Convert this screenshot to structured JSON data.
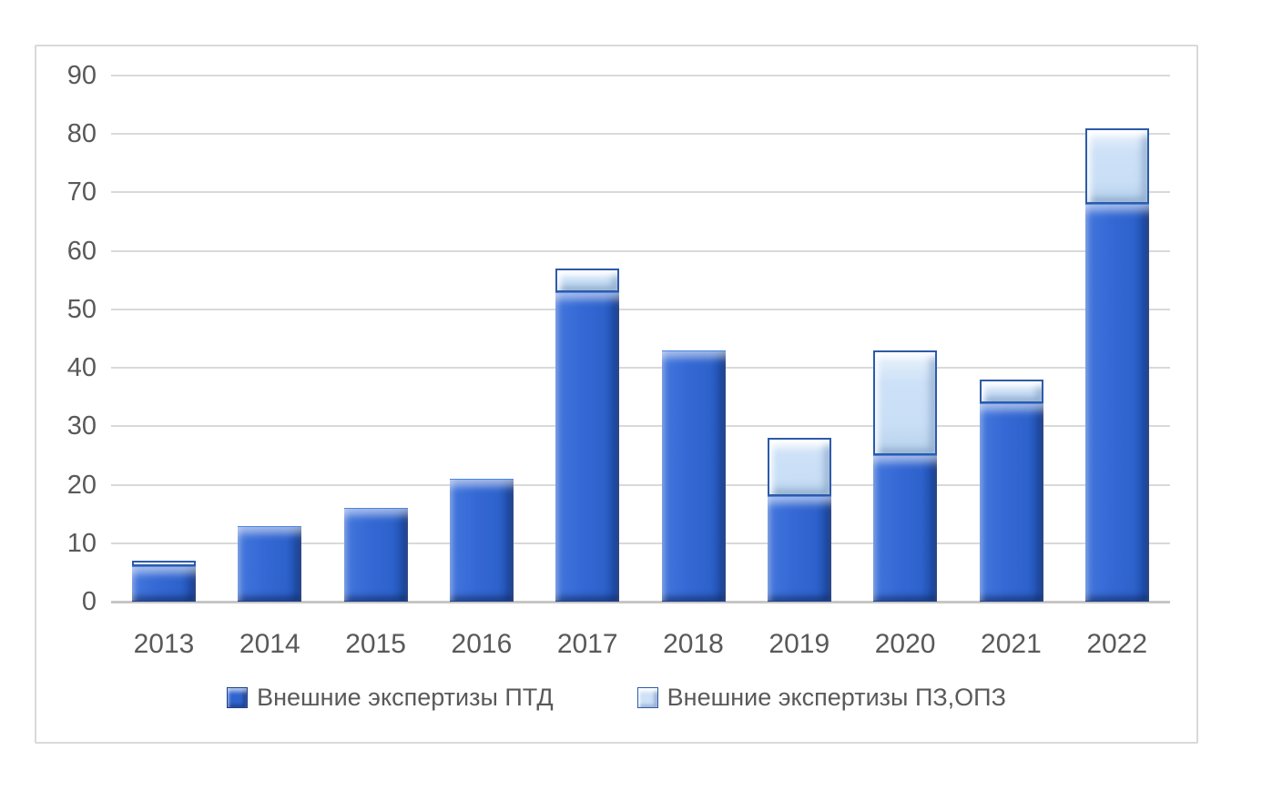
{
  "chart_data": {
    "type": "bar",
    "stacked": true,
    "title": "",
    "xlabel": "",
    "ylabel": "",
    "categories": [
      "2013",
      "2014",
      "2015",
      "2016",
      "2017",
      "2018",
      "2019",
      "2020",
      "2021",
      "2022"
    ],
    "series": [
      {
        "name": "Внешние экспертизы ПТД",
        "color": "#2F63CE",
        "values": [
          6,
          13,
          16,
          21,
          53,
          43,
          18,
          25,
          34,
          68
        ]
      },
      {
        "name": "Внешние экспертизы ПЗ,ОПЗ",
        "color": "#CDE1F7",
        "values": [
          1,
          0,
          0,
          0,
          4,
          0,
          10,
          18,
          4,
          13
        ]
      }
    ],
    "stack_totals": [
      7,
      13,
      16,
      21,
      57,
      43,
      28,
      43,
      38,
      81
    ],
    "ylim": [
      0,
      90
    ],
    "ytick_step": 10,
    "yticks": [
      "0",
      "10",
      "20",
      "30",
      "40",
      "50",
      "60",
      "70",
      "80",
      "90"
    ],
    "grid": true,
    "legend_position": "bottom",
    "colors": {
      "gridline": "#D9D9D9",
      "axis_line": "#C6C6C6",
      "tick_text": "#595959",
      "frame_border": "#D9D9D9",
      "background": "#FFFFFF"
    }
  }
}
